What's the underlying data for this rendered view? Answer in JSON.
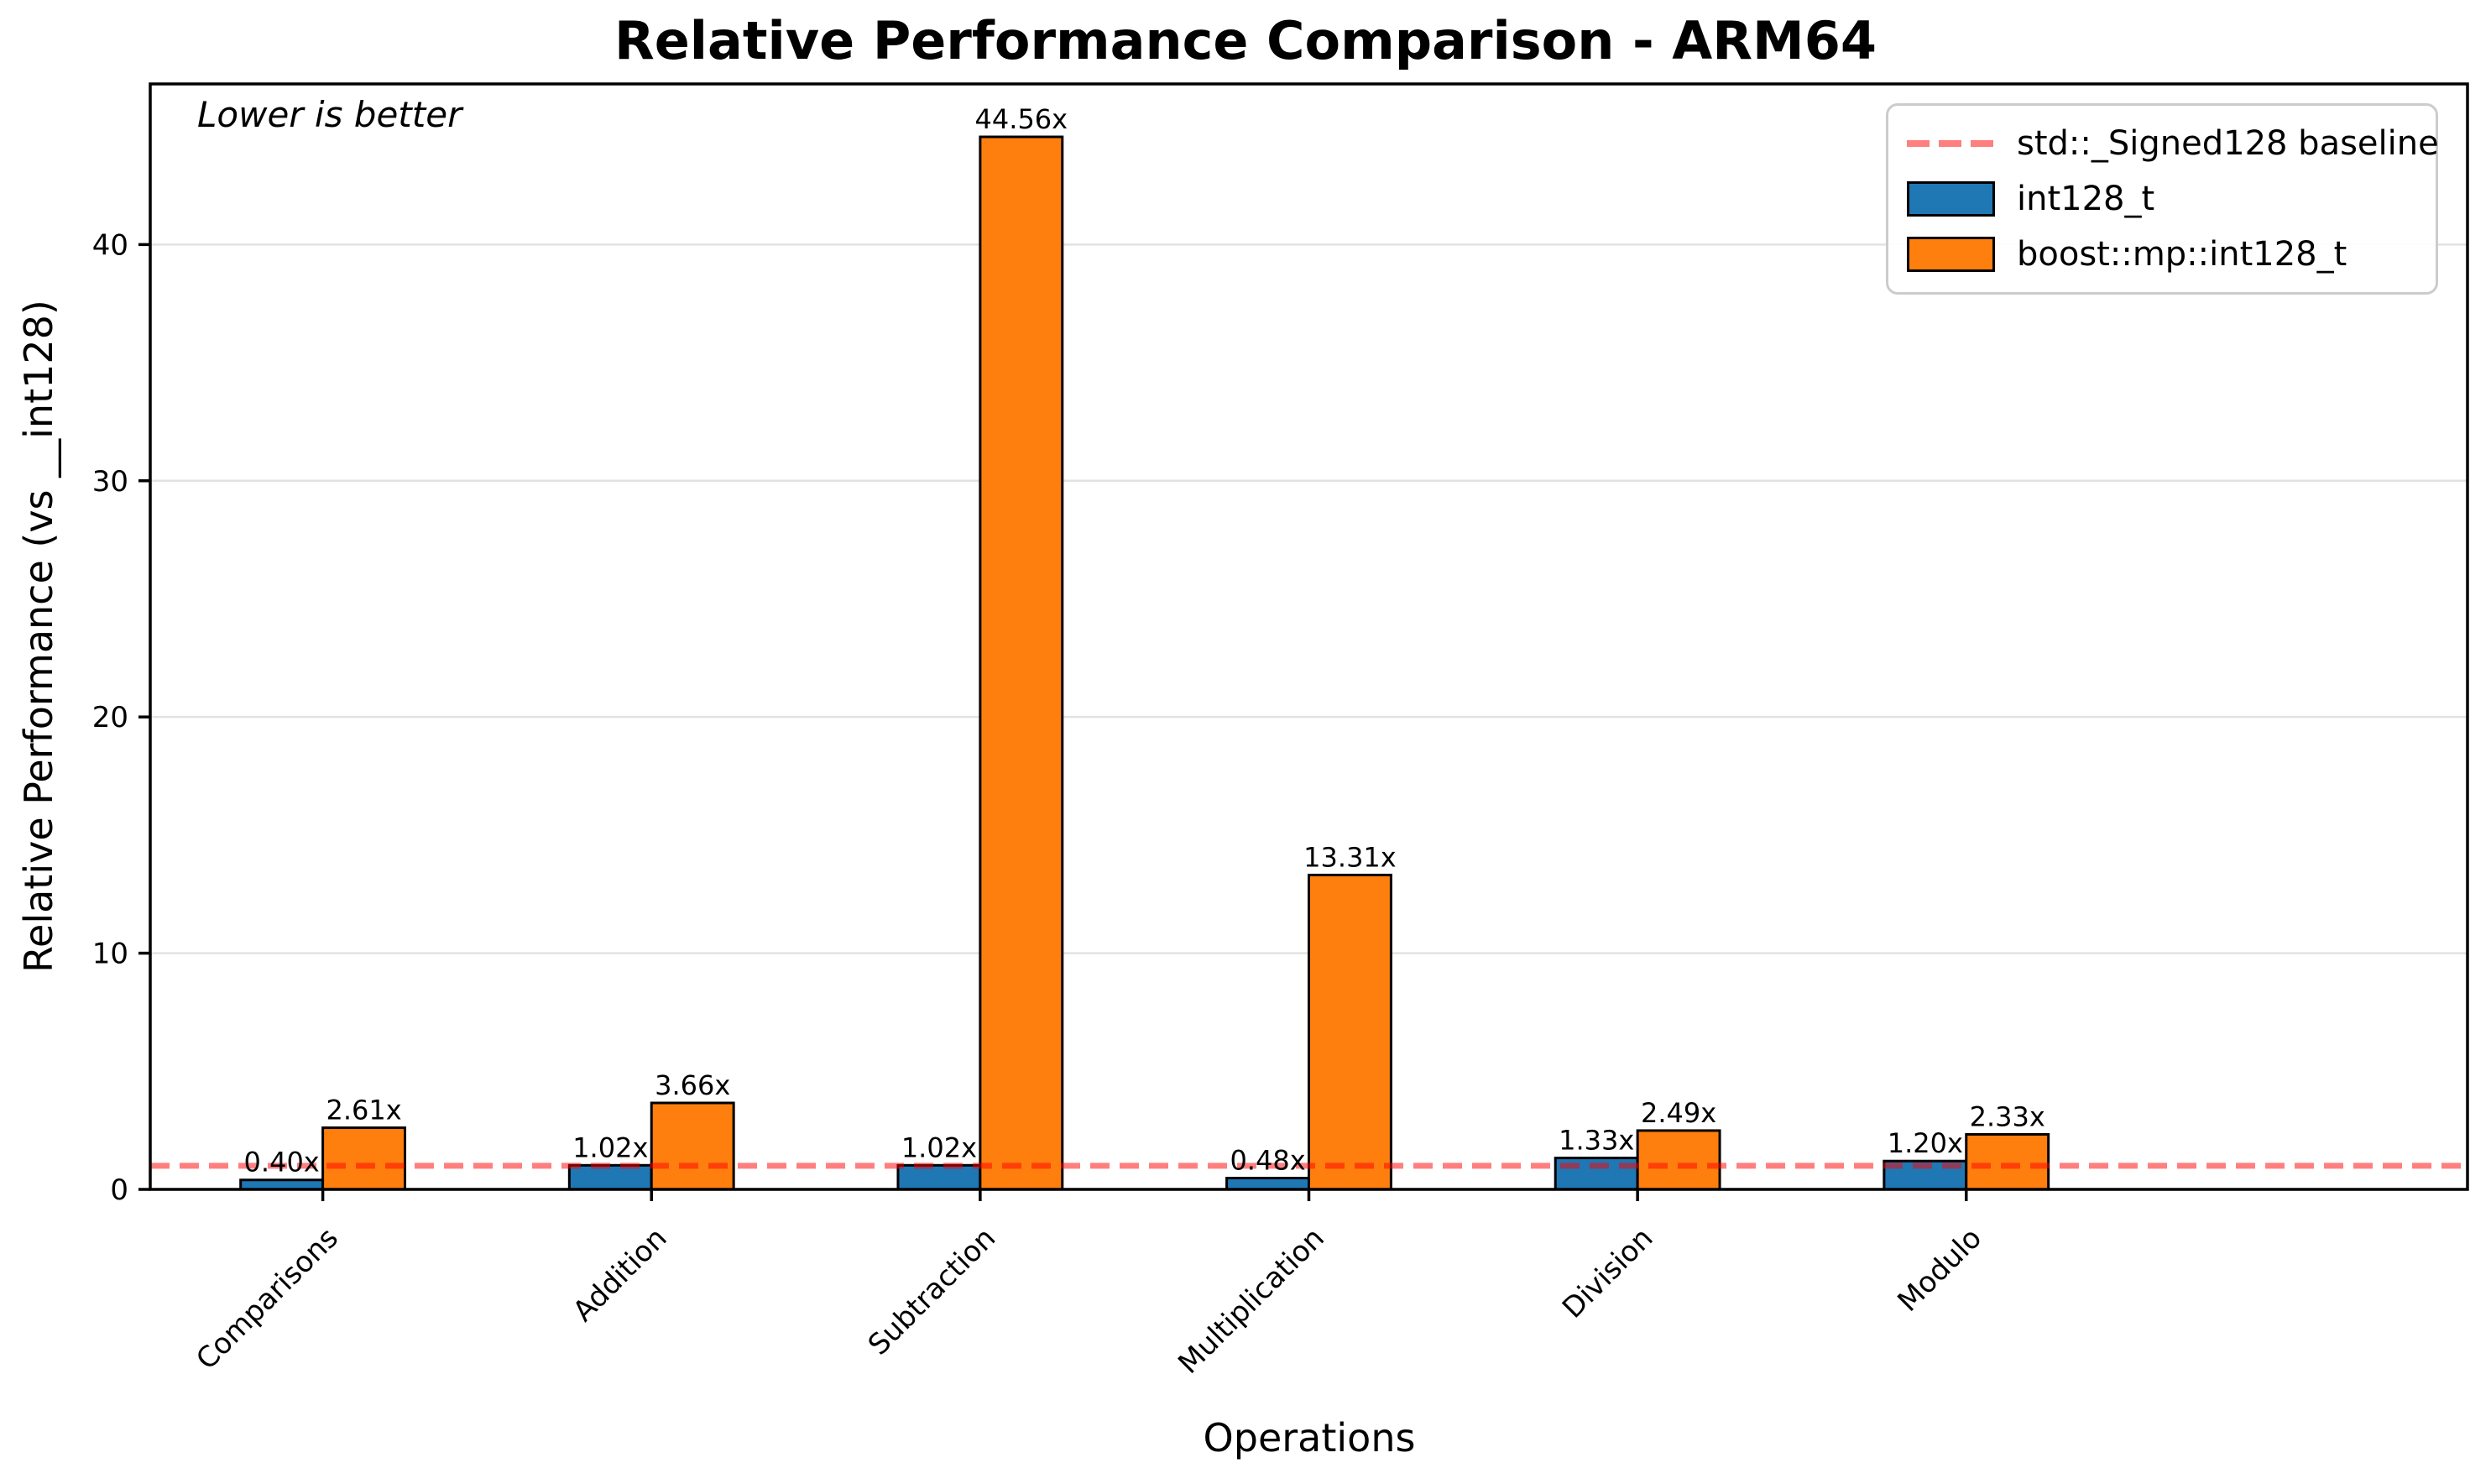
{
  "chart_data": {
    "type": "bar",
    "title": "Relative Performance Comparison - ARM64",
    "annotation": "Lower is better",
    "xlabel": "Operations",
    "ylabel": "Relative Performance (vs __int128)",
    "categories": [
      "Comparisons",
      "Addition",
      "Subtraction",
      "Multiplication",
      "Division",
      "Modulo"
    ],
    "series": [
      {
        "name": "int128_t",
        "color": "#1f77b4",
        "values": [
          0.4,
          1.02,
          1.02,
          0.48,
          1.33,
          1.2
        ],
        "labels": [
          "0.40x",
          "1.02x",
          "1.02x",
          "0.48x",
          "1.33x",
          "1.20x"
        ]
      },
      {
        "name": "boost::mp::int128_t",
        "color": "#ff7f0e",
        "values": [
          2.61,
          3.66,
          44.56,
          13.31,
          2.49,
          2.33
        ],
        "labels": [
          "2.61x",
          "3.66x",
          "44.56x",
          "13.31x",
          "2.49x",
          "2.33x"
        ]
      }
    ],
    "baseline": {
      "value": 1.0,
      "label": "std::_Signed128 baseline",
      "color": "rgba(255,0,0,0.5)"
    },
    "yticks": [
      0,
      10,
      20,
      30,
      40
    ],
    "ytick_labels": [
      "0",
      "10",
      "20",
      "30",
      "40"
    ],
    "ylim": [
      0,
      46.8
    ],
    "grid": true,
    "grid_color": "#e2e2e2",
    "bar_edge_color": "#000000",
    "legend_position": "upper right"
  }
}
